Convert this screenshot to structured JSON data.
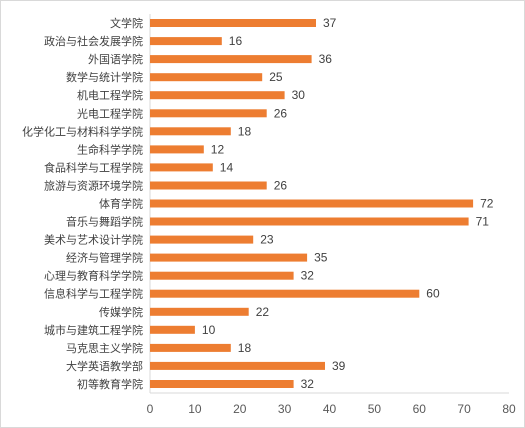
{
  "chart_data": {
    "type": "bar",
    "orientation": "horizontal",
    "title": "",
    "xlabel": "",
    "ylabel": "",
    "categories": [
      "文学院",
      "政治与社会发展学院",
      "外国语学院",
      "数学与统计学院",
      "机电工程学院",
      "光电工程学院",
      "化学化工与材料科学学院",
      "生命科学学院",
      "食品科学与工程学院",
      "旅游与资源环境学院",
      "体育学院",
      "音乐与舞蹈学院",
      "美术与艺术设计学院",
      "经济与管理学院",
      "心理与教育科学学院",
      "信息科学与工程学院",
      "传媒学院",
      "城市与建筑工程学院",
      "马克思主义学院",
      "大学英语教学部",
      "初等教育学院"
    ],
    "values": [
      37,
      16,
      36,
      25,
      30,
      26,
      18,
      12,
      14,
      26,
      72,
      71,
      23,
      35,
      32,
      60,
      22,
      10,
      18,
      39,
      32
    ],
    "xlim": [
      0,
      80
    ],
    "xticks": [
      "0",
      "10",
      "20",
      "30",
      "40",
      "50",
      "60",
      "70",
      "80"
    ],
    "grid": false,
    "legend": "none",
    "bar_color": "#ED7D31",
    "axis_color": "#D9D9D9"
  }
}
